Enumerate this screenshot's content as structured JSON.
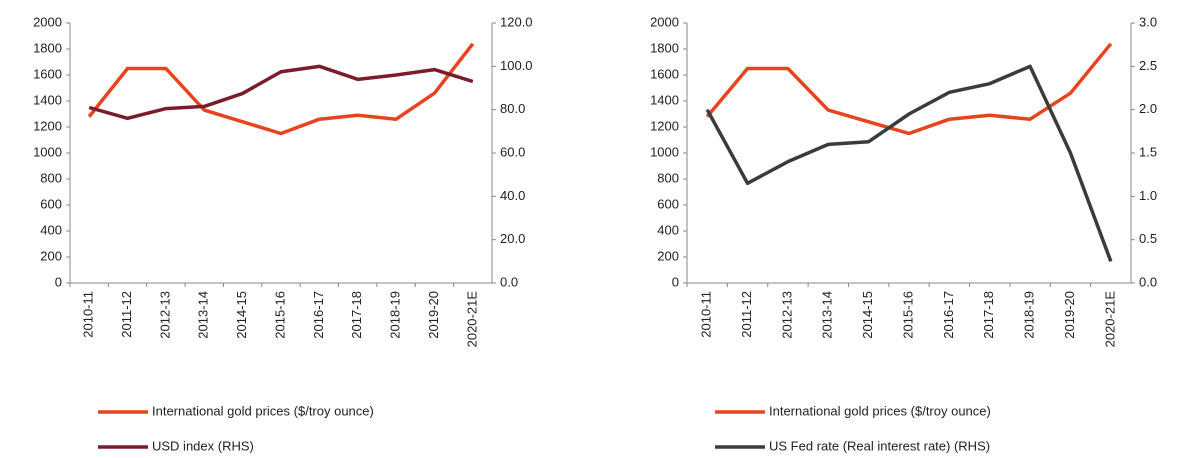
{
  "chart_data": [
    {
      "type": "line",
      "categories": [
        "2010-11",
        "2011-12",
        "2012-13",
        "2013-14",
        "2014-15",
        "2015-16",
        "2016-17",
        "2017-18",
        "2018-19",
        "2019-20",
        "2020-21E"
      ],
      "series": [
        {
          "name": "International gold prices ($/troy ounce)",
          "color": "#e8431f",
          "values": [
            1280,
            1650,
            1650,
            1330,
            1240,
            1150,
            1260,
            1290,
            1260,
            1460,
            1840
          ]
        },
        {
          "name": "USD index (RHS)",
          "color": "#7a1c2c",
          "axis": "y2",
          "values": [
            81,
            76,
            80.5,
            81.5,
            87.5,
            97.5,
            100,
            94,
            96,
            98.5,
            93
          ]
        }
      ],
      "ylim": [
        0,
        2000
      ],
      "yticks": [
        0,
        200,
        400,
        600,
        800,
        1000,
        1200,
        1400,
        1600,
        1800,
        2000
      ],
      "y2lim": [
        0,
        120
      ],
      "y2ticks": [
        {
          "value": 0,
          "label": "0.0"
        },
        {
          "value": 20,
          "label": "20.0"
        },
        {
          "value": 40,
          "label": "40.0"
        },
        {
          "value": 60,
          "label": "60.0"
        },
        {
          "value": 80,
          "label": "80.0"
        },
        {
          "value": 100,
          "label": "100.0"
        },
        {
          "value": 120,
          "label": "120.0"
        }
      ],
      "grid": false
    },
    {
      "type": "line",
      "categories": [
        "2010-11",
        "2011-12",
        "2012-13",
        "2013-14",
        "2014-15",
        "2015-16",
        "2016-17",
        "2017-18",
        "2018-19",
        "2019-20",
        "2020-21E"
      ],
      "series": [
        {
          "name": "International gold prices ($/troy ounce)",
          "color": "#e8431f",
          "values": [
            1280,
            1650,
            1650,
            1330,
            1240,
            1150,
            1260,
            1290,
            1260,
            1460,
            1840
          ]
        },
        {
          "name": "US Fed rate (Real interest rate) (RHS)",
          "color": "#3b3b3b",
          "axis": "y2",
          "values": [
            2.0,
            1.15,
            1.4,
            1.6,
            1.63,
            1.95,
            2.2,
            2.3,
            2.5,
            1.5,
            0.25
          ]
        }
      ],
      "ylim": [
        0,
        2000
      ],
      "yticks": [
        0,
        200,
        400,
        600,
        800,
        1000,
        1200,
        1400,
        1600,
        1800,
        2000
      ],
      "y2lim": [
        0,
        3
      ],
      "y2ticks": [
        {
          "value": 0,
          "label": "0.0"
        },
        0.5,
        {
          "value": 1,
          "label": "1.0"
        },
        1.5,
        {
          "value": 2,
          "label": "2.0"
        },
        2.5,
        {
          "value": 3,
          "label": "3.0"
        }
      ],
      "grid": false
    }
  ]
}
